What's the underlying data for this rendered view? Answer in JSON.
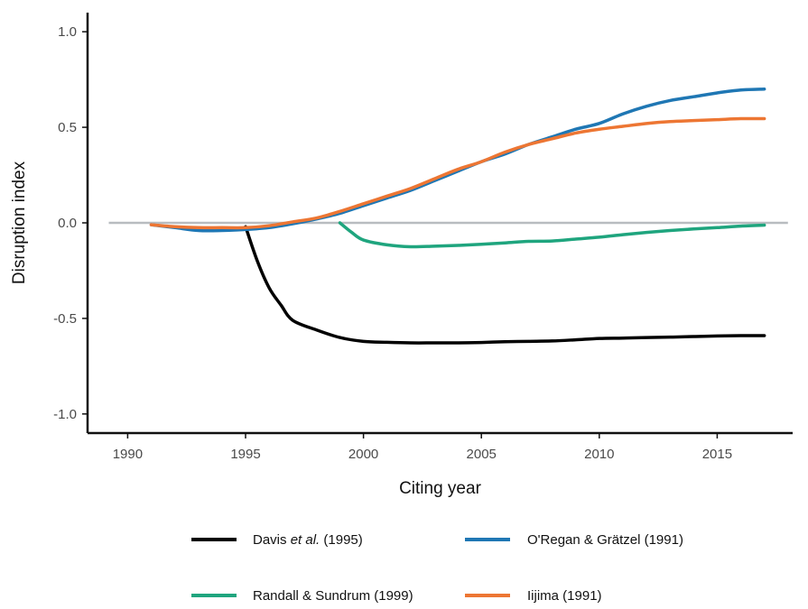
{
  "chart_data": {
    "type": "line",
    "title": "",
    "xlabel": "Citing year",
    "ylabel": "Disruption index",
    "xlim": [
      1988.3,
      2018.2
    ],
    "ylim": [
      -1.1,
      1.1
    ],
    "x_ticks": [
      1990,
      1995,
      2000,
      2005,
      2010,
      2015
    ],
    "x_tick_labels": [
      "1990",
      "1995",
      "2000",
      "2005",
      "2010",
      "2015"
    ],
    "y_ticks": [
      -1.0,
      -0.5,
      0.0,
      0.5,
      1.0
    ],
    "y_tick_labels": [
      "-1.0",
      "-0.5",
      "0.0",
      "0.5",
      "1.0"
    ],
    "reference_line": {
      "y": 0,
      "color": "#b8bcc0"
    },
    "grid": false,
    "legend_position": "bottom",
    "series": [
      {
        "name": "Davis et al. (1995)",
        "name_parts": [
          "Davis ",
          "et al.",
          " (1995)"
        ],
        "color": "#000000",
        "x": [
          1995,
          1995.5,
          1996,
          1996.5,
          1997,
          1998,
          1999,
          2000,
          2001,
          2002,
          2003,
          2004,
          2005,
          2006,
          2007,
          2008,
          2009,
          2010,
          2011,
          2012,
          2013,
          2014,
          2015,
          2016,
          2017
        ],
        "y": [
          -0.02,
          -0.2,
          -0.34,
          -0.43,
          -0.51,
          -0.56,
          -0.6,
          -0.62,
          -0.625,
          -0.628,
          -0.628,
          -0.628,
          -0.626,
          -0.622,
          -0.62,
          -0.618,
          -0.612,
          -0.605,
          -0.603,
          -0.6,
          -0.598,
          -0.595,
          -0.592,
          -0.59,
          -0.59
        ]
      },
      {
        "name": "O'Regan & Grätzel (1991)",
        "color": "#1f77b4",
        "x": [
          1991,
          1992,
          1993,
          1994,
          1995,
          1996,
          1997,
          1998,
          1999,
          2000,
          2001,
          2002,
          2003,
          2004,
          2005,
          2006,
          2007,
          2008,
          2009,
          2010,
          2011,
          2012,
          2013,
          2014,
          2015,
          2016,
          2017
        ],
        "y": [
          -0.01,
          -0.025,
          -0.04,
          -0.04,
          -0.035,
          -0.025,
          -0.005,
          0.02,
          0.05,
          0.09,
          0.13,
          0.17,
          0.22,
          0.27,
          0.32,
          0.36,
          0.41,
          0.45,
          0.49,
          0.52,
          0.57,
          0.61,
          0.64,
          0.66,
          0.68,
          0.695,
          0.7
        ]
      },
      {
        "name": "Randall & Sundrum (1999)",
        "color": "#1fa57e",
        "x": [
          1999,
          1999.5,
          2000,
          2001,
          2002,
          2003,
          2004,
          2005,
          2006,
          2007,
          2008,
          2009,
          2010,
          2011,
          2012,
          2013,
          2014,
          2015,
          2016,
          2017
        ],
        "y": [
          0.0,
          -0.05,
          -0.09,
          -0.115,
          -0.125,
          -0.122,
          -0.118,
          -0.112,
          -0.105,
          -0.097,
          -0.095,
          -0.085,
          -0.075,
          -0.062,
          -0.05,
          -0.04,
          -0.032,
          -0.025,
          -0.017,
          -0.012
        ]
      },
      {
        "name": "Iijima (1991)",
        "color": "#ed7633",
        "x": [
          1991,
          1992,
          1993,
          1994,
          1995,
          1996,
          1997,
          1998,
          1999,
          2000,
          2001,
          2002,
          2003,
          2004,
          2005,
          2006,
          2007,
          2008,
          2009,
          2010,
          2011,
          2012,
          2013,
          2014,
          2015,
          2016,
          2017
        ],
        "y": [
          -0.01,
          -0.02,
          -0.025,
          -0.025,
          -0.025,
          -0.015,
          0.005,
          0.025,
          0.06,
          0.1,
          0.14,
          0.18,
          0.23,
          0.28,
          0.32,
          0.37,
          0.41,
          0.44,
          0.47,
          0.49,
          0.505,
          0.52,
          0.53,
          0.535,
          0.54,
          0.545,
          0.545
        ]
      }
    ]
  }
}
